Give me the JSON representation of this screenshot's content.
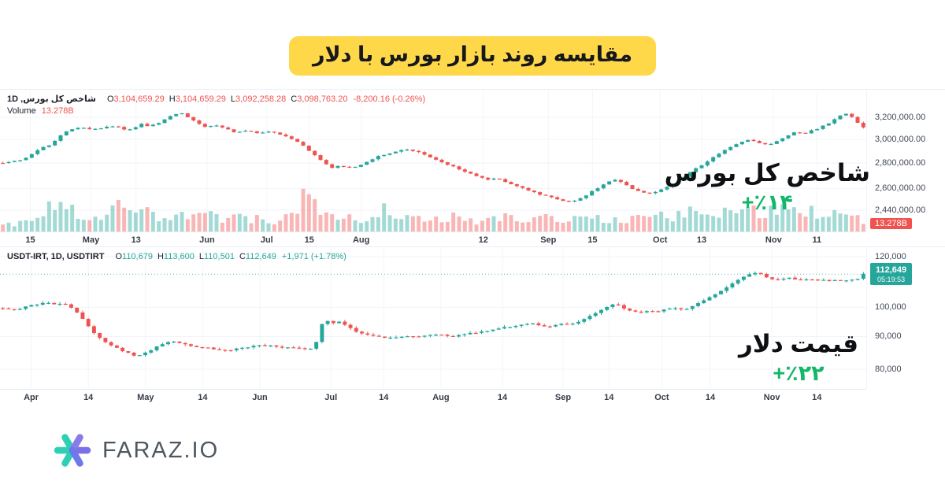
{
  "title": {
    "text": "مقایسه روند بازار بورس با دلار"
  },
  "colors": {
    "up": "#26a69a",
    "down": "#ef5350",
    "grid": "#f0f3fa",
    "legend_red": "#ef5350",
    "legend_teal": "#26a69a",
    "annotation_green": "#12b76a",
    "banner_yellow": "#FFD84A",
    "logo_teal": "#2ECFB4",
    "logo_purple": "#7B70E8"
  },
  "chart_data": [
    {
      "type": "candlestick",
      "scale": "log",
      "legend": {
        "symbol": "شاخص کل بورس, 1D",
        "pairs": [
          [
            "O",
            "3,104,659.29"
          ],
          [
            "H",
            "3,104,659.29"
          ],
          [
            "L",
            "3,092,258.28"
          ],
          [
            "C",
            "3,098,763.20"
          ]
        ],
        "change": "-8,200.16 (-0.26%)",
        "value_color": "#ef5350"
      },
      "volume_row": {
        "label": "Volume",
        "value": "13.278B",
        "value_color": "#ef5350"
      },
      "axis_badge": {
        "text": "13.278B",
        "bg": "#ef5350"
      },
      "y_ticks": [
        "3,200,000.00",
        "3,000,000.00",
        "2,800,000.00",
        "2,600,000.00",
        "2,440,000.00"
      ],
      "y_tick_values": [
        3200000,
        3000000,
        2800000,
        2600000,
        2440000
      ],
      "x_ticks": [
        {
          "label": "15",
          "pos": 0.035
        },
        {
          "label": "May",
          "pos": 0.105
        },
        {
          "label": "13",
          "pos": 0.157
        },
        {
          "label": "Jun",
          "pos": 0.239
        },
        {
          "label": "Jul",
          "pos": 0.308
        },
        {
          "label": "15",
          "pos": 0.357
        },
        {
          "label": "Aug",
          "pos": 0.417
        },
        {
          "label": "12",
          "pos": 0.558
        },
        {
          "label": "Sep",
          "pos": 0.633
        },
        {
          "label": "15",
          "pos": 0.684
        },
        {
          "label": "Oct",
          "pos": 0.762
        },
        {
          "label": "13",
          "pos": 0.81
        },
        {
          "label": "Nov",
          "pos": 0.893
        },
        {
          "label": "11",
          "pos": 0.943
        }
      ],
      "annotation": {
        "label": "شاخص کل بورس",
        "change": "+٪۱۴"
      },
      "trend": [
        [
          0,
          2800000
        ],
        [
          0.015,
          2815000
        ],
        [
          0.03,
          2850000
        ],
        [
          0.045,
          2930000
        ],
        [
          0.052,
          2945000
        ],
        [
          0.06,
          2980000
        ],
        [
          0.068,
          3040000
        ],
        [
          0.078,
          3090000
        ],
        [
          0.09,
          3105000
        ],
        [
          0.105,
          3085000
        ],
        [
          0.115,
          3100000
        ],
        [
          0.125,
          3125000
        ],
        [
          0.135,
          3105000
        ],
        [
          0.145,
          3085000
        ],
        [
          0.152,
          3100000
        ],
        [
          0.16,
          3140000
        ],
        [
          0.17,
          3115000
        ],
        [
          0.178,
          3140000
        ],
        [
          0.19,
          3185000
        ],
        [
          0.2,
          3230000
        ],
        [
          0.208,
          3240000
        ],
        [
          0.215,
          3205000
        ],
        [
          0.225,
          3150000
        ],
        [
          0.235,
          3110000
        ],
        [
          0.248,
          3125000
        ],
        [
          0.258,
          3095000
        ],
        [
          0.27,
          3060000
        ],
        [
          0.282,
          3080000
        ],
        [
          0.295,
          3055000
        ],
        [
          0.31,
          3065000
        ],
        [
          0.325,
          3040000
        ],
        [
          0.34,
          2990000
        ],
        [
          0.35,
          2940000
        ],
        [
          0.36,
          2880000
        ],
        [
          0.372,
          2805000
        ],
        [
          0.382,
          2765000
        ],
        [
          0.392,
          2780000
        ],
        [
          0.402,
          2760000
        ],
        [
          0.412,
          2775000
        ],
        [
          0.425,
          2820000
        ],
        [
          0.44,
          2865000
        ],
        [
          0.455,
          2895000
        ],
        [
          0.468,
          2910000
        ],
        [
          0.48,
          2895000
        ],
        [
          0.495,
          2855000
        ],
        [
          0.51,
          2805000
        ],
        [
          0.525,
          2765000
        ],
        [
          0.54,
          2725000
        ],
        [
          0.555,
          2685000
        ],
        [
          0.567,
          2665000
        ],
        [
          0.575,
          2680000
        ],
        [
          0.585,
          2650000
        ],
        [
          0.598,
          2615000
        ],
        [
          0.612,
          2580000
        ],
        [
          0.625,
          2555000
        ],
        [
          0.638,
          2530000
        ],
        [
          0.65,
          2510000
        ],
        [
          0.66,
          2498000
        ],
        [
          0.67,
          2520000
        ],
        [
          0.682,
          2565000
        ],
        [
          0.695,
          2620000
        ],
        [
          0.705,
          2655000
        ],
        [
          0.712,
          2670000
        ],
        [
          0.72,
          2650000
        ],
        [
          0.73,
          2605000
        ],
        [
          0.74,
          2575000
        ],
        [
          0.75,
          2560000
        ],
        [
          0.762,
          2585000
        ],
        [
          0.775,
          2625000
        ],
        [
          0.788,
          2675000
        ],
        [
          0.8,
          2730000
        ],
        [
          0.812,
          2785000
        ],
        [
          0.825,
          2845000
        ],
        [
          0.838,
          2905000
        ],
        [
          0.85,
          2950000
        ],
        [
          0.86,
          2985000
        ],
        [
          0.868,
          3000000
        ],
        [
          0.878,
          2970000
        ],
        [
          0.888,
          2950000
        ],
        [
          0.9,
          2985000
        ],
        [
          0.912,
          3030000
        ],
        [
          0.92,
          3060000
        ],
        [
          0.93,
          3050000
        ],
        [
          0.94,
          3080000
        ],
        [
          0.95,
          3105000
        ],
        [
          0.958,
          3140000
        ],
        [
          0.967,
          3185000
        ],
        [
          0.975,
          3225000
        ],
        [
          0.982,
          3240000
        ],
        [
          0.988,
          3195000
        ],
        [
          0.993,
          3145000
        ],
        [
          1,
          3110000
        ]
      ],
      "volume_profile": [
        [
          0,
          0.18
        ],
        [
          0.03,
          0.25
        ],
        [
          0.05,
          0.45
        ],
        [
          0.062,
          1.0
        ],
        [
          0.075,
          0.55
        ],
        [
          0.09,
          0.5
        ],
        [
          0.1,
          0.45
        ],
        [
          0.12,
          0.4
        ],
        [
          0.135,
          0.8
        ],
        [
          0.15,
          0.45
        ],
        [
          0.17,
          0.55
        ],
        [
          0.19,
          0.4
        ],
        [
          0.22,
          0.35
        ],
        [
          0.25,
          0.4
        ],
        [
          0.28,
          0.35
        ],
        [
          0.3,
          0.3
        ],
        [
          0.33,
          0.35
        ],
        [
          0.345,
          0.75
        ],
        [
          0.355,
          0.9
        ],
        [
          0.37,
          0.5
        ],
        [
          0.4,
          0.35
        ],
        [
          0.43,
          0.3
        ],
        [
          0.445,
          0.6
        ],
        [
          0.46,
          0.4
        ],
        [
          0.49,
          0.35
        ],
        [
          0.52,
          0.4
        ],
        [
          0.55,
          0.3
        ],
        [
          0.58,
          0.35
        ],
        [
          0.61,
          0.3
        ],
        [
          0.64,
          0.35
        ],
        [
          0.67,
          0.3
        ],
        [
          0.7,
          0.35
        ],
        [
          0.72,
          0.3
        ],
        [
          0.75,
          0.35
        ],
        [
          0.78,
          0.45
        ],
        [
          0.8,
          0.5
        ],
        [
          0.83,
          0.55
        ],
        [
          0.85,
          0.5
        ],
        [
          0.87,
          0.6
        ],
        [
          0.89,
          0.5
        ],
        [
          0.91,
          0.55
        ],
        [
          0.93,
          0.6
        ],
        [
          0.95,
          0.5
        ],
        [
          0.97,
          0.45
        ],
        [
          1,
          0.35
        ]
      ]
    },
    {
      "type": "candlestick",
      "scale": "log",
      "legend": {
        "symbol": "USDT-IRT, 1D, USDTIRT",
        "pairs": [
          [
            "O",
            "110,679"
          ],
          [
            "H",
            "113,600"
          ],
          [
            "L",
            "110,501"
          ],
          [
            "C",
            "112,649"
          ]
        ],
        "change": "+1,971 (+1.78%)",
        "value_color": "#26a69a"
      },
      "price_badge": {
        "price": "112,649",
        "countdown": "05:19:53",
        "bg": "#26a69a"
      },
      "price_line_value": 112649,
      "y_ticks": [
        "120,000",
        "100,000",
        "90,000",
        "80,000"
      ],
      "y_tick_values": [
        120000,
        100000,
        90000,
        80000
      ],
      "x_ticks": [
        {
          "label": "Apr",
          "pos": 0.036
        },
        {
          "label": "14",
          "pos": 0.102
        },
        {
          "label": "May",
          "pos": 0.168
        },
        {
          "label": "14",
          "pos": 0.234
        },
        {
          "label": "Jun",
          "pos": 0.3
        },
        {
          "label": "Jul",
          "pos": 0.382
        },
        {
          "label": "14",
          "pos": 0.443
        },
        {
          "label": "Aug",
          "pos": 0.509
        },
        {
          "label": "14",
          "pos": 0.58
        },
        {
          "label": "Sep",
          "pos": 0.65
        },
        {
          "label": "14",
          "pos": 0.703
        },
        {
          "label": "Oct",
          "pos": 0.764
        },
        {
          "label": "14",
          "pos": 0.82
        },
        {
          "label": "Nov",
          "pos": 0.891
        },
        {
          "label": "14",
          "pos": 0.943
        }
      ],
      "annotation": {
        "label": "قیمت دلار",
        "change": "+٪۲۲"
      },
      "trend": [
        [
          0,
          99500
        ],
        [
          0.01,
          99000
        ],
        [
          0.02,
          99600
        ],
        [
          0.03,
          100500
        ],
        [
          0.04,
          101000
        ],
        [
          0.05,
          101600
        ],
        [
          0.058,
          101200
        ],
        [
          0.065,
          101500
        ],
        [
          0.075,
          100800
        ],
        [
          0.085,
          98500
        ],
        [
          0.095,
          95000
        ],
        [
          0.105,
          91500
        ],
        [
          0.115,
          89000
        ],
        [
          0.125,
          87200
        ],
        [
          0.135,
          86000
        ],
        [
          0.145,
          84800
        ],
        [
          0.155,
          83800
        ],
        [
          0.165,
          84800
        ],
        [
          0.175,
          86200
        ],
        [
          0.185,
          87600
        ],
        [
          0.195,
          88400
        ],
        [
          0.205,
          88000
        ],
        [
          0.215,
          87200
        ],
        [
          0.23,
          86600
        ],
        [
          0.245,
          86100
        ],
        [
          0.26,
          85700
        ],
        [
          0.275,
          86100
        ],
        [
          0.29,
          86900
        ],
        [
          0.3,
          87400
        ],
        [
          0.315,
          86900
        ],
        [
          0.33,
          86400
        ],
        [
          0.345,
          86400
        ],
        [
          0.355,
          86100
        ],
        [
          0.362,
          86600
        ],
        [
          0.368,
          91500
        ],
        [
          0.373,
          95800
        ],
        [
          0.379,
          94800
        ],
        [
          0.386,
          94400
        ],
        [
          0.393,
          94900
        ],
        [
          0.401,
          93400
        ],
        [
          0.41,
          91600
        ],
        [
          0.42,
          91000
        ],
        [
          0.43,
          90400
        ],
        [
          0.44,
          89900
        ],
        [
          0.45,
          89500
        ],
        [
          0.462,
          89900
        ],
        [
          0.472,
          90200
        ],
        [
          0.482,
          90000
        ],
        [
          0.492,
          90500
        ],
        [
          0.502,
          90800
        ],
        [
          0.512,
          90400
        ],
        [
          0.522,
          90000
        ],
        [
          0.532,
          90400
        ],
        [
          0.545,
          91100
        ],
        [
          0.558,
          91700
        ],
        [
          0.57,
          92300
        ],
        [
          0.582,
          92900
        ],
        [
          0.595,
          93600
        ],
        [
          0.605,
          94100
        ],
        [
          0.613,
          94400
        ],
        [
          0.622,
          93800
        ],
        [
          0.632,
          93300
        ],
        [
          0.642,
          93700
        ],
        [
          0.652,
          94300
        ],
        [
          0.66,
          94100
        ],
        [
          0.67,
          95000
        ],
        [
          0.68,
          96500
        ],
        [
          0.69,
          98200
        ],
        [
          0.7,
          99800
        ],
        [
          0.707,
          100800
        ],
        [
          0.713,
          101200
        ],
        [
          0.722,
          99700
        ],
        [
          0.732,
          98600
        ],
        [
          0.742,
          98100
        ],
        [
          0.752,
          98600
        ],
        [
          0.76,
          98300
        ],
        [
          0.768,
          99000
        ],
        [
          0.776,
          99500
        ],
        [
          0.784,
          99900
        ],
        [
          0.79,
          99300
        ],
        [
          0.796,
          99600
        ],
        [
          0.804,
          100700
        ],
        [
          0.812,
          102200
        ],
        [
          0.822,
          103800
        ],
        [
          0.832,
          105600
        ],
        [
          0.842,
          107600
        ],
        [
          0.85,
          109400
        ],
        [
          0.857,
          110800
        ],
        [
          0.863,
          111900
        ],
        [
          0.869,
          112800
        ],
        [
          0.875,
          113300
        ],
        [
          0.881,
          112500
        ],
        [
          0.887,
          111400
        ],
        [
          0.893,
          110900
        ],
        [
          0.9,
          110500
        ],
        [
          0.907,
          110900
        ],
        [
          0.913,
          111200
        ],
        [
          0.92,
          110800
        ],
        [
          0.927,
          110500
        ],
        [
          0.934,
          110700
        ],
        [
          0.941,
          110400
        ],
        [
          0.948,
          110100
        ],
        [
          0.955,
          110300
        ],
        [
          0.962,
          110000
        ],
        [
          0.969,
          110200
        ],
        [
          0.975,
          109900
        ],
        [
          0.981,
          110100
        ],
        [
          0.987,
          110300
        ],
        [
          0.992,
          110700
        ],
        [
          1,
          112649
        ]
      ]
    }
  ],
  "footer": {
    "brand": "FARAZ.IO"
  }
}
